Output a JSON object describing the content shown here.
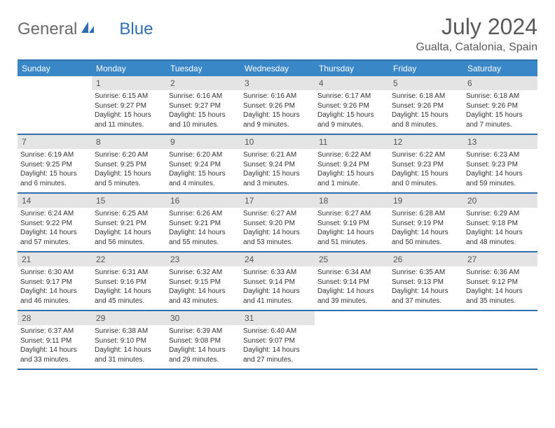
{
  "brand": {
    "part1": "General",
    "part2": "Blue"
  },
  "title": "July 2024",
  "location": "Gualta, Catalonia, Spain",
  "colors": {
    "header_bg": "#3a87c8",
    "header_border": "#2f6fb0",
    "daynum_bg": "#e4e4e4",
    "text": "#333333",
    "title_color": "#5a5a5a"
  },
  "weekdays": [
    "Sunday",
    "Monday",
    "Tuesday",
    "Wednesday",
    "Thursday",
    "Friday",
    "Saturday"
  ],
  "leading_blanks": 1,
  "days": [
    {
      "n": 1,
      "sr": "6:15 AM",
      "ss": "9:27 PM",
      "dl": "15 hours and 11 minutes."
    },
    {
      "n": 2,
      "sr": "6:16 AM",
      "ss": "9:27 PM",
      "dl": "15 hours and 10 minutes."
    },
    {
      "n": 3,
      "sr": "6:16 AM",
      "ss": "9:26 PM",
      "dl": "15 hours and 9 minutes."
    },
    {
      "n": 4,
      "sr": "6:17 AM",
      "ss": "9:26 PM",
      "dl": "15 hours and 9 minutes."
    },
    {
      "n": 5,
      "sr": "6:18 AM",
      "ss": "9:26 PM",
      "dl": "15 hours and 8 minutes."
    },
    {
      "n": 6,
      "sr": "6:18 AM",
      "ss": "9:26 PM",
      "dl": "15 hours and 7 minutes."
    },
    {
      "n": 7,
      "sr": "6:19 AM",
      "ss": "9:25 PM",
      "dl": "15 hours and 6 minutes."
    },
    {
      "n": 8,
      "sr": "6:20 AM",
      "ss": "9:25 PM",
      "dl": "15 hours and 5 minutes."
    },
    {
      "n": 9,
      "sr": "6:20 AM",
      "ss": "9:24 PM",
      "dl": "15 hours and 4 minutes."
    },
    {
      "n": 10,
      "sr": "6:21 AM",
      "ss": "9:24 PM",
      "dl": "15 hours and 3 minutes."
    },
    {
      "n": 11,
      "sr": "6:22 AM",
      "ss": "9:24 PM",
      "dl": "15 hours and 1 minute."
    },
    {
      "n": 12,
      "sr": "6:22 AM",
      "ss": "9:23 PM",
      "dl": "15 hours and 0 minutes."
    },
    {
      "n": 13,
      "sr": "6:23 AM",
      "ss": "9:23 PM",
      "dl": "14 hours and 59 minutes."
    },
    {
      "n": 14,
      "sr": "6:24 AM",
      "ss": "9:22 PM",
      "dl": "14 hours and 57 minutes."
    },
    {
      "n": 15,
      "sr": "6:25 AM",
      "ss": "9:21 PM",
      "dl": "14 hours and 56 minutes."
    },
    {
      "n": 16,
      "sr": "6:26 AM",
      "ss": "9:21 PM",
      "dl": "14 hours and 55 minutes."
    },
    {
      "n": 17,
      "sr": "6:27 AM",
      "ss": "9:20 PM",
      "dl": "14 hours and 53 minutes."
    },
    {
      "n": 18,
      "sr": "6:27 AM",
      "ss": "9:19 PM",
      "dl": "14 hours and 51 minutes."
    },
    {
      "n": 19,
      "sr": "6:28 AM",
      "ss": "9:19 PM",
      "dl": "14 hours and 50 minutes."
    },
    {
      "n": 20,
      "sr": "6:29 AM",
      "ss": "9:18 PM",
      "dl": "14 hours and 48 minutes."
    },
    {
      "n": 21,
      "sr": "6:30 AM",
      "ss": "9:17 PM",
      "dl": "14 hours and 46 minutes."
    },
    {
      "n": 22,
      "sr": "6:31 AM",
      "ss": "9:16 PM",
      "dl": "14 hours and 45 minutes."
    },
    {
      "n": 23,
      "sr": "6:32 AM",
      "ss": "9:15 PM",
      "dl": "14 hours and 43 minutes."
    },
    {
      "n": 24,
      "sr": "6:33 AM",
      "ss": "9:14 PM",
      "dl": "14 hours and 41 minutes."
    },
    {
      "n": 25,
      "sr": "6:34 AM",
      "ss": "9:14 PM",
      "dl": "14 hours and 39 minutes."
    },
    {
      "n": 26,
      "sr": "6:35 AM",
      "ss": "9:13 PM",
      "dl": "14 hours and 37 minutes."
    },
    {
      "n": 27,
      "sr": "6:36 AM",
      "ss": "9:12 PM",
      "dl": "14 hours and 35 minutes."
    },
    {
      "n": 28,
      "sr": "6:37 AM",
      "ss": "9:11 PM",
      "dl": "14 hours and 33 minutes."
    },
    {
      "n": 29,
      "sr": "6:38 AM",
      "ss": "9:10 PM",
      "dl": "14 hours and 31 minutes."
    },
    {
      "n": 30,
      "sr": "6:39 AM",
      "ss": "9:08 PM",
      "dl": "14 hours and 29 minutes."
    },
    {
      "n": 31,
      "sr": "6:40 AM",
      "ss": "9:07 PM",
      "dl": "14 hours and 27 minutes."
    }
  ],
  "labels": {
    "sunrise": "Sunrise:",
    "sunset": "Sunset:",
    "daylight": "Daylight:"
  }
}
